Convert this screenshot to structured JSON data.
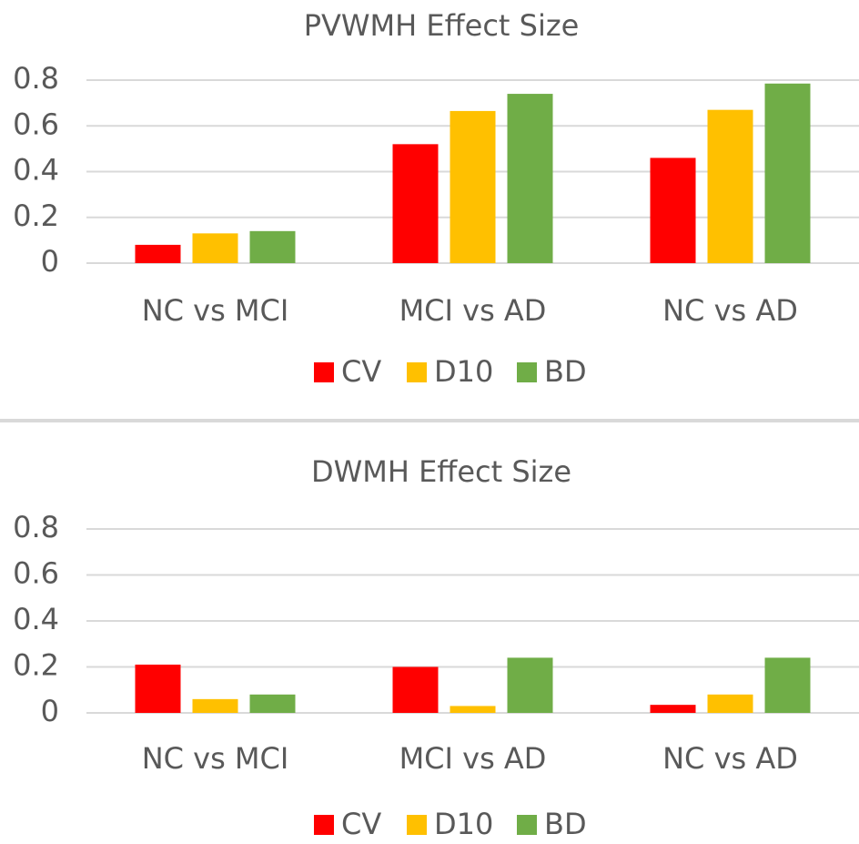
{
  "chart_data": [
    {
      "type": "bar",
      "title": "PVWMH Effect Size",
      "categories": [
        "NC vs MCI",
        "MCI vs AD",
        "NC vs AD"
      ],
      "series": [
        {
          "name": "CV",
          "color": "#ff0000",
          "values": [
            0.08,
            0.52,
            0.46
          ]
        },
        {
          "name": "D10",
          "color": "#ffc000",
          "values": [
            0.13,
            0.665,
            0.67
          ]
        },
        {
          "name": "BD",
          "color": "#70ad47",
          "values": [
            0.14,
            0.74,
            0.785
          ]
        }
      ],
      "ylim": [
        0,
        0.8
      ],
      "yticks": [
        0,
        0.2,
        0.4,
        0.6,
        0.8
      ],
      "grid": true,
      "legend": "bottom"
    },
    {
      "type": "bar",
      "title": "DWMH Effect Size",
      "categories": [
        "NC vs MCI",
        "MCI vs AD",
        "NC vs AD"
      ],
      "series": [
        {
          "name": "CV",
          "color": "#ff0000",
          "values": [
            0.21,
            0.2,
            0.035
          ]
        },
        {
          "name": "D10",
          "color": "#ffc000",
          "values": [
            0.06,
            0.03,
            0.08
          ]
        },
        {
          "name": "BD",
          "color": "#70ad47",
          "values": [
            0.08,
            0.24,
            0.24
          ]
        }
      ],
      "ylim": [
        0,
        0.8
      ],
      "yticks": [
        0,
        0.2,
        0.4,
        0.6,
        0.8
      ],
      "grid": true,
      "legend": "bottom"
    }
  ]
}
